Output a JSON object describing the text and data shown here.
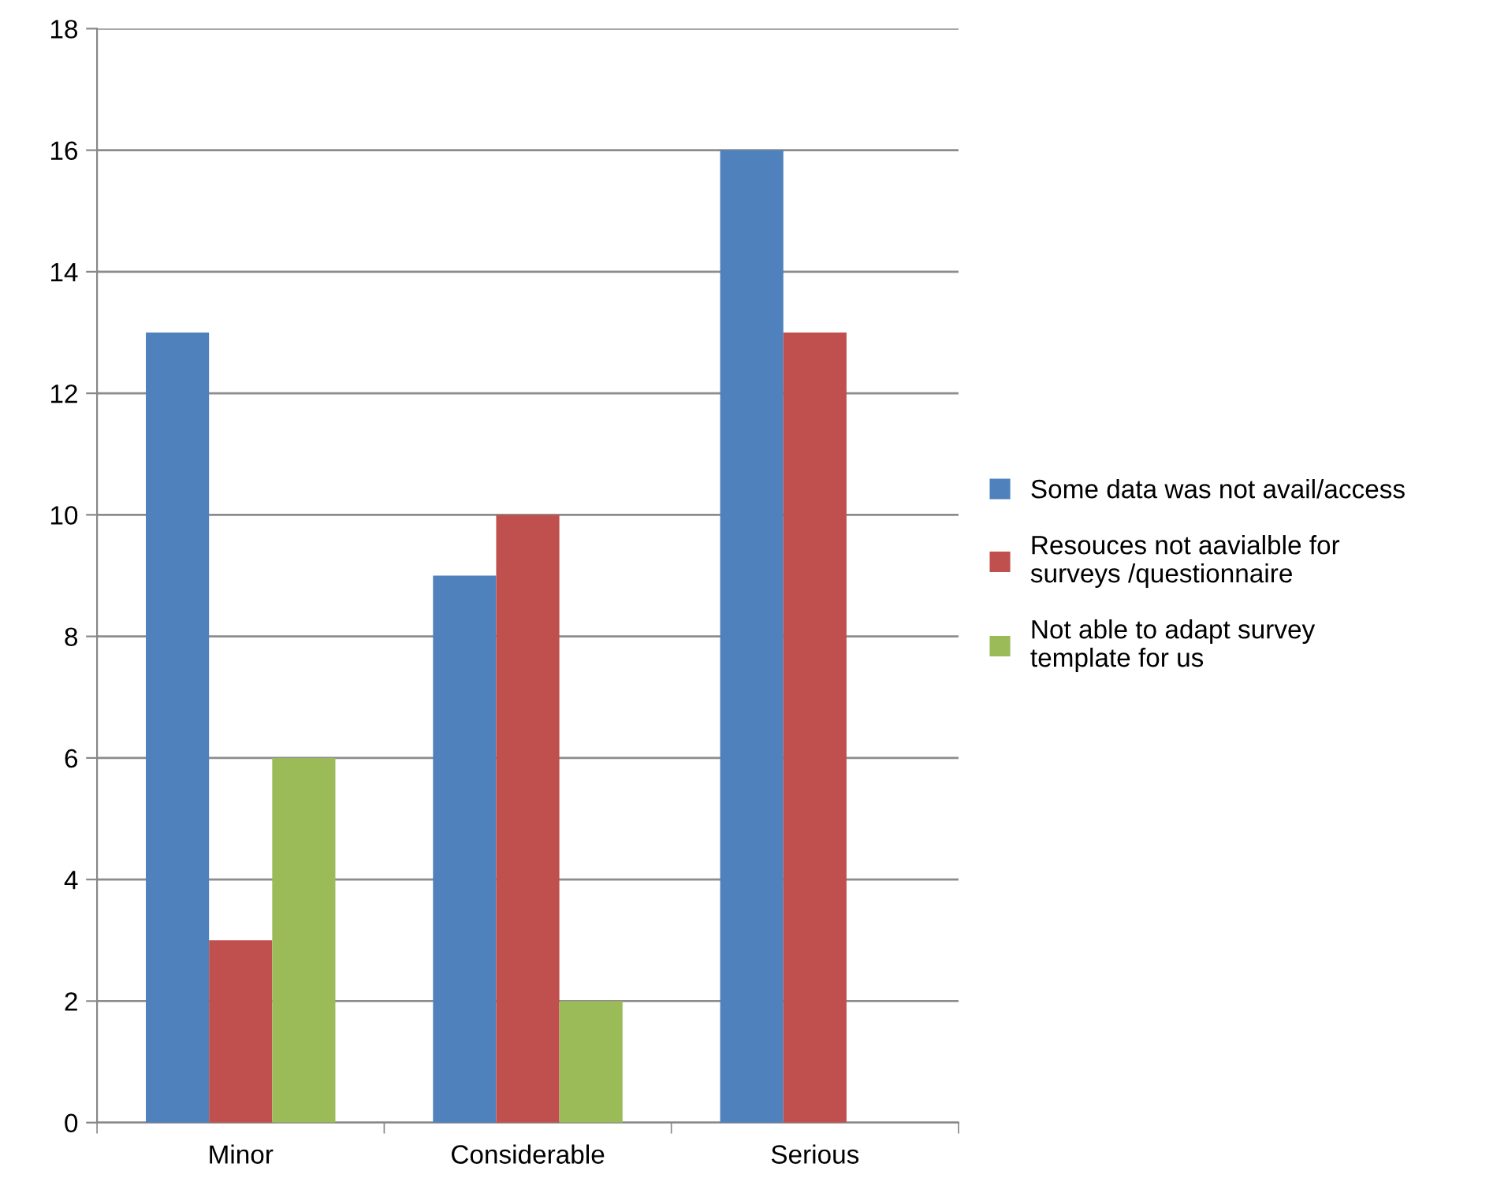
{
  "chart_data": {
    "type": "bar",
    "categories": [
      "Minor",
      "Considerable",
      "Serious"
    ],
    "series": [
      {
        "name": "Some data was not avail/access",
        "color": "#4f81bd",
        "values": [
          13,
          9,
          16
        ]
      },
      {
        "name": "Resouces not aavialble for\nsurveys /questionnaire",
        "color": "#c0504d",
        "values": [
          3,
          10,
          13
        ]
      },
      {
        "name": "Not able to adapt survey\ntemplate for us",
        "color": "#9bbb59",
        "values": [
          6,
          2,
          null
        ]
      }
    ],
    "ylim": [
      0,
      18
    ],
    "yticks": [
      0,
      2,
      4,
      6,
      8,
      10,
      12,
      14,
      16,
      18
    ],
    "grid": "y",
    "legend": "right"
  }
}
